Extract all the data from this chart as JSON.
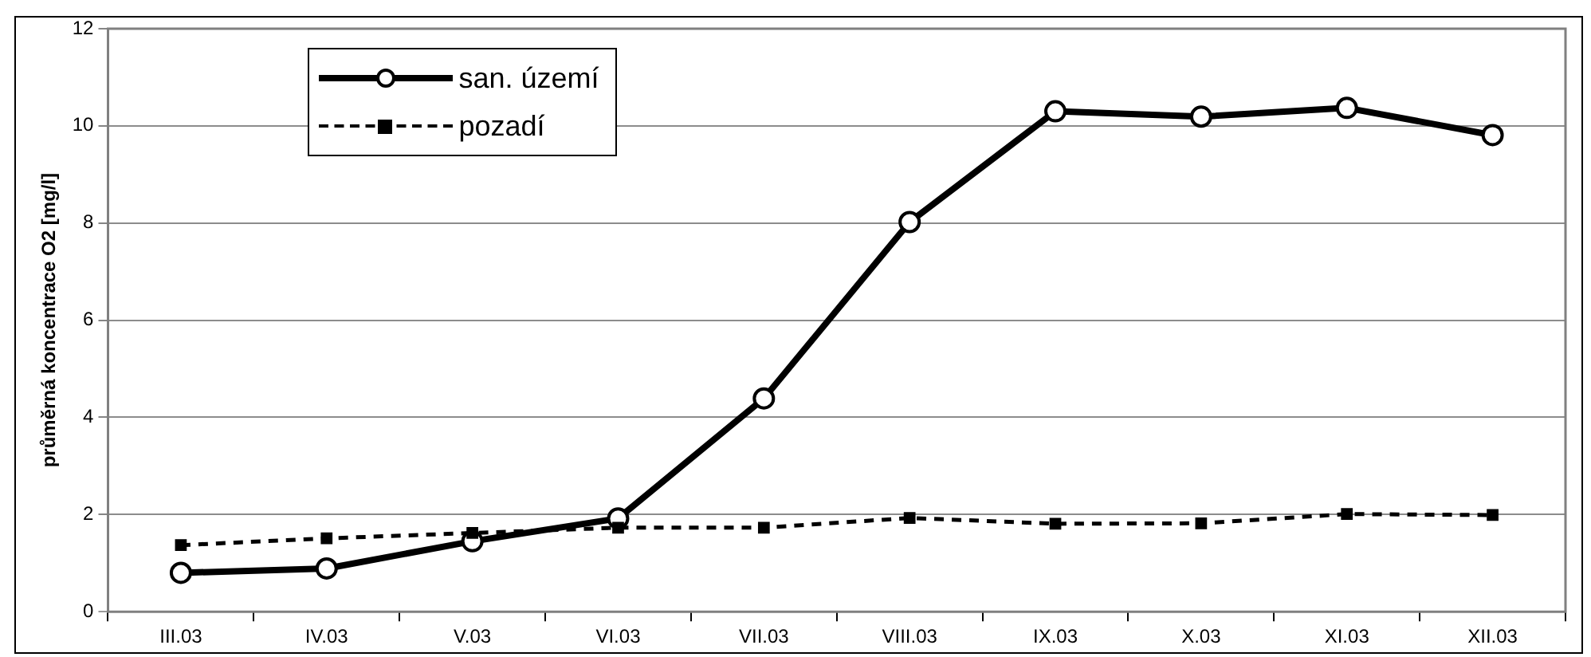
{
  "chart_data": {
    "type": "line",
    "ylabel": "průměrná koncentrace O2 [mg/l]",
    "categories": [
      "III.03",
      "IV.03",
      "V.03",
      "VI.03",
      "VII.03",
      "VIII.03",
      "IX.03",
      "X.03",
      "XI.03",
      "XII.03"
    ],
    "series": [
      {
        "name": "san. území",
        "color": "#000000",
        "marker": "circle",
        "line_style": "solid",
        "values": [
          0.8,
          0.89,
          1.45,
          1.92,
          4.39,
          8.02,
          10.3,
          10.19,
          10.37,
          9.81
        ]
      },
      {
        "name": "pozadí",
        "color": "#000000",
        "marker": "square",
        "line_style": "dashed",
        "values": [
          1.37,
          1.51,
          1.62,
          1.73,
          1.73,
          1.93,
          1.81,
          1.82,
          2.01,
          1.99
        ]
      }
    ],
    "ylim": [
      0,
      12
    ],
    "yticks": [
      0,
      2,
      4,
      6,
      8,
      10,
      12
    ],
    "grid": "y",
    "legend": "top left"
  }
}
